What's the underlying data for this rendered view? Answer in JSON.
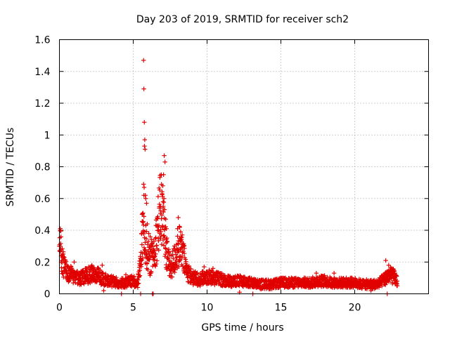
{
  "chart_data": {
    "type": "scatter",
    "title": "Day 203 of 2019, SRMTID for receiver sch2",
    "xlabel": "GPS time / hours",
    "ylabel": "SRMTID / TECUs",
    "xlim": [
      0,
      25
    ],
    "ylim": [
      0,
      1.6
    ],
    "xticks": [
      "0",
      "5",
      "10",
      "15",
      "20"
    ],
    "yticks": [
      "0",
      "0.2",
      "0.4",
      "0.6",
      "0.8",
      "1",
      "1.2",
      "1.4",
      "1.6"
    ],
    "grid": true,
    "marker": "plus",
    "color": "#e00000",
    "profile": [
      [
        0.0,
        0.22
      ],
      [
        0.05,
        0.29
      ],
      [
        0.15,
        0.26
      ],
      [
        0.3,
        0.17
      ],
      [
        0.6,
        0.13
      ],
      [
        1.0,
        0.11
      ],
      [
        1.5,
        0.1
      ],
      [
        2.0,
        0.12
      ],
      [
        2.5,
        0.12
      ],
      [
        3.0,
        0.09
      ],
      [
        3.5,
        0.08
      ],
      [
        4.0,
        0.07
      ],
      [
        4.5,
        0.07
      ],
      [
        5.0,
        0.08
      ],
      [
        5.3,
        0.06
      ],
      [
        5.5,
        0.2
      ],
      [
        5.7,
        0.45
      ],
      [
        5.85,
        0.3
      ],
      [
        6.1,
        0.2
      ],
      [
        6.3,
        0.25
      ],
      [
        6.5,
        0.3
      ],
      [
        6.8,
        0.52
      ],
      [
        7.0,
        0.48
      ],
      [
        7.2,
        0.3
      ],
      [
        7.5,
        0.15
      ],
      [
        7.8,
        0.22
      ],
      [
        8.1,
        0.3
      ],
      [
        8.3,
        0.27
      ],
      [
        8.6,
        0.15
      ],
      [
        9.0,
        0.1
      ],
      [
        9.5,
        0.09
      ],
      [
        10.0,
        0.11
      ],
      [
        10.5,
        0.1
      ],
      [
        11.0,
        0.09
      ],
      [
        11.5,
        0.08
      ],
      [
        12.0,
        0.08
      ],
      [
        12.5,
        0.08
      ],
      [
        13.0,
        0.07
      ],
      [
        13.5,
        0.06
      ],
      [
        14.0,
        0.06
      ],
      [
        14.5,
        0.06
      ],
      [
        15.0,
        0.07
      ],
      [
        15.5,
        0.07
      ],
      [
        16.0,
        0.07
      ],
      [
        16.5,
        0.07
      ],
      [
        17.0,
        0.07
      ],
      [
        17.5,
        0.08
      ],
      [
        18.0,
        0.08
      ],
      [
        18.5,
        0.07
      ],
      [
        19.0,
        0.07
      ],
      [
        19.5,
        0.07
      ],
      [
        20.0,
        0.07
      ],
      [
        20.5,
        0.06
      ],
      [
        21.0,
        0.06
      ],
      [
        21.5,
        0.06
      ],
      [
        22.0,
        0.09
      ],
      [
        22.3,
        0.12
      ],
      [
        22.6,
        0.11
      ],
      [
        22.9,
        0.08
      ]
    ],
    "notable_points": [
      [
        5.7,
        1.47
      ],
      [
        5.72,
        1.29
      ],
      [
        5.75,
        1.08
      ],
      [
        5.78,
        0.97
      ],
      [
        5.76,
        0.93
      ],
      [
        5.8,
        0.91
      ],
      [
        5.7,
        0.69
      ],
      [
        5.74,
        0.67
      ],
      [
        5.82,
        0.62
      ],
      [
        5.85,
        0.6
      ],
      [
        5.9,
        0.57
      ],
      [
        5.6,
        0.5
      ],
      [
        5.65,
        0.45
      ],
      [
        5.95,
        0.44
      ],
      [
        6.05,
        0.38
      ],
      [
        6.15,
        0.36
      ],
      [
        6.9,
        0.75
      ],
      [
        7.05,
        0.75
      ],
      [
        7.1,
        0.87
      ],
      [
        7.15,
        0.83
      ],
      [
        7.0,
        0.68
      ],
      [
        6.95,
        0.63
      ],
      [
        7.08,
        0.6
      ],
      [
        7.02,
        0.58
      ],
      [
        6.85,
        0.55
      ],
      [
        7.12,
        0.53
      ],
      [
        7.2,
        0.47
      ],
      [
        7.25,
        0.41
      ],
      [
        6.7,
        0.42
      ],
      [
        6.8,
        0.38
      ],
      [
        7.3,
        0.33
      ],
      [
        7.4,
        0.28
      ],
      [
        8.05,
        0.48
      ],
      [
        8.0,
        0.41
      ],
      [
        8.15,
        0.35
      ],
      [
        8.25,
        0.33
      ],
      [
        8.35,
        0.31
      ],
      [
        8.2,
        0.28
      ],
      [
        0.0,
        0.3
      ],
      [
        0.05,
        0.3
      ],
      [
        0.1,
        0.28
      ],
      [
        0.02,
        0.27
      ],
      [
        5.5,
        0.22
      ],
      [
        5.45,
        0.18
      ],
      [
        5.5,
        0.0
      ],
      [
        6.3,
        0.0
      ],
      [
        6.35,
        0.0
      ],
      [
        9.2,
        0.14
      ],
      [
        22.1,
        0.21
      ],
      [
        22.3,
        0.18
      ],
      [
        22.5,
        0.16
      ],
      [
        22.2,
        0.0
      ],
      [
        2.2,
        0.18
      ],
      [
        1.0,
        0.2
      ],
      [
        2.9,
        0.18
      ],
      [
        3.0,
        0.02
      ],
      [
        4.2,
        0.0
      ],
      [
        4.5,
        0.12
      ],
      [
        12.2,
        0.01
      ],
      [
        13.1,
        0.0
      ],
      [
        14.2,
        0.03
      ],
      [
        17.4,
        0.13
      ],
      [
        18.6,
        0.13
      ],
      [
        21.1,
        0.02
      ],
      [
        10.4,
        0.16
      ],
      [
        9.8,
        0.17
      ]
    ]
  }
}
